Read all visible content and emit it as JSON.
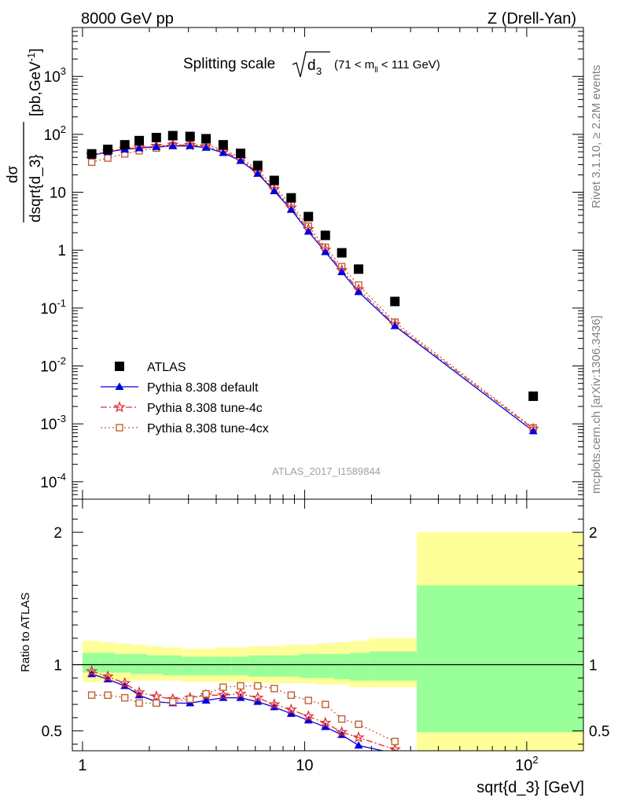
{
  "header": {
    "left": "8000 GeV pp",
    "right": "Z (Drell-Yan)"
  },
  "side_labels": {
    "rivet": "Rivet 3.1.10, ≥ 2.2M events",
    "mcplots": "mcplots.cern.ch [arXiv:1306.3436]"
  },
  "chart_data": [
    {
      "type": "scatter",
      "title": "Splitting scale √d₃ (71 < m_ll < 111 GeV)",
      "title_main": "Splitting scale",
      "title_sqrt": "d",
      "title_sqrt_sub": "3",
      "title_range_a": "(71 < m",
      "title_range_sub": "ll",
      "title_range_b": " < 111 GeV)",
      "ylabel": "dσ/dsqrt{d_3} [pb,GeV⁻¹]",
      "ylabel_num": "dσ",
      "ylabel_den": "dsqrt{d_3}",
      "ylabel_unit": "[pb,GeV",
      "ylabel_unit_sup": "-1",
      "ylabel_unit_end": "]",
      "yscale": "log",
      "xscale": "log",
      "xlim": [
        0.9,
        180
      ],
      "ylim": [
        5e-05,
        7000
      ],
      "ytick_labels": [
        "10⁻⁴",
        "10⁻³",
        "10⁻²",
        "10⁻¹",
        "1",
        "10",
        "10²",
        "10³"
      ],
      "ytick_values": [
        0.0001,
        0.001,
        0.01,
        0.1,
        1,
        10,
        100,
        1000
      ],
      "ytick_text": [
        [
          "10",
          "-4"
        ],
        [
          "10",
          "-3"
        ],
        [
          "10",
          "-2"
        ],
        [
          "10",
          "-1"
        ],
        [
          "1",
          ""
        ],
        [
          "10",
          ""
        ],
        [
          "10",
          "2"
        ],
        [
          "10",
          "3"
        ]
      ],
      "legend_position": "bottom-left",
      "watermark": "ATLAS_2017_I1589844",
      "series": [
        {
          "name": "ATLAS",
          "marker": "square",
          "color": "#000000",
          "x": [
            1.1,
            1.3,
            1.55,
            1.8,
            2.15,
            2.55,
            3.05,
            3.6,
            4.3,
            5.15,
            6.15,
            7.3,
            8.7,
            10.4,
            12.4,
            14.7,
            17.5,
            25.5,
            107
          ],
          "y": [
            46,
            55,
            66,
            78,
            88,
            95,
            92,
            84,
            66,
            47,
            29,
            16,
            8,
            3.8,
            1.8,
            0.9,
            0.47,
            0.13,
            0.003
          ]
        },
        {
          "name": "Pythia 8.308 default",
          "marker": "triangle",
          "color": "#0000e0",
          "line": "solid",
          "x": [
            1.1,
            1.3,
            1.55,
            1.8,
            2.15,
            2.55,
            3.05,
            3.6,
            4.3,
            5.15,
            6.15,
            7.3,
            8.7,
            10.4,
            12.4,
            14.7,
            17.5,
            25.5,
            107
          ],
          "y": [
            43,
            50,
            55,
            58,
            61,
            63,
            63,
            59,
            48,
            35,
            21,
            10.5,
            5,
            2.1,
            0.93,
            0.42,
            0.19,
            0.049,
            0.00075
          ]
        },
        {
          "name": "Pythia 8.308 tune-4c",
          "marker": "star",
          "color": "#e03030",
          "line": "dash-dot",
          "x": [
            1.1,
            1.3,
            1.55,
            1.8,
            2.15,
            2.55,
            3.05,
            3.6,
            4.3,
            5.15,
            6.15,
            7.3,
            8.7,
            10.4,
            12.4,
            14.7,
            17.5,
            25.5,
            107
          ],
          "y": [
            44,
            51,
            56,
            59,
            63,
            66,
            65,
            62,
            51,
            37,
            22,
            11.2,
            5.4,
            2.3,
            1.02,
            0.45,
            0.21,
            0.052,
            0.00082
          ]
        },
        {
          "name": "Pythia 8.308 tune-4cx",
          "marker": "open-square",
          "color": "#c06030",
          "line": "dotted",
          "x": [
            1.1,
            1.3,
            1.55,
            1.8,
            2.15,
            2.55,
            3.05,
            3.6,
            4.3,
            5.15,
            6.15,
            7.3,
            8.7,
            10.4,
            12.4,
            14.7,
            17.5,
            25.5,
            107
          ],
          "y": [
            33,
            39,
            46,
            52,
            58,
            64,
            66,
            65,
            55,
            40,
            24,
            12.6,
            6.1,
            2.6,
            1.12,
            0.52,
            0.25,
            0.057,
            0.00085
          ]
        }
      ]
    },
    {
      "type": "line",
      "ylabel": "Ratio to ATLAS",
      "xlabel": "sqrt{d_3} [GeV]",
      "xscale": "log",
      "xlim": [
        0.9,
        180
      ],
      "ylim": [
        0.35,
        2.25
      ],
      "ytick_labels": [
        "0.5",
        "1",
        "2"
      ],
      "ytick_values": [
        0.5,
        1,
        2
      ],
      "xtick_labels": [
        "1",
        "10",
        "10²"
      ],
      "xtick_text": [
        [
          "1",
          ""
        ],
        [
          "10",
          ""
        ],
        [
          "10",
          "2"
        ]
      ],
      "xtick_values": [
        1,
        10,
        100
      ],
      "bands": {
        "edges": [
          1.0,
          1.2,
          1.4,
          1.65,
          1.95,
          2.3,
          2.8,
          3.3,
          3.9,
          4.7,
          5.6,
          6.7,
          8.0,
          9.5,
          11.3,
          13.5,
          16.0,
          19.5,
          32,
          180
        ],
        "stat_low": [
          0.94,
          0.94,
          0.94,
          0.93,
          0.93,
          0.92,
          0.92,
          0.92,
          0.92,
          0.92,
          0.91,
          0.91,
          0.91,
          0.9,
          0.9,
          0.89,
          0.88,
          0.88,
          0.49
        ],
        "stat_high": [
          1.09,
          1.09,
          1.08,
          1.08,
          1.07,
          1.07,
          1.06,
          1.06,
          1.06,
          1.06,
          1.07,
          1.07,
          1.07,
          1.08,
          1.08,
          1.08,
          1.09,
          1.1,
          1.6
        ],
        "tot_low": [
          0.87,
          0.87,
          0.88,
          0.88,
          0.88,
          0.88,
          0.87,
          0.87,
          0.87,
          0.87,
          0.87,
          0.86,
          0.86,
          0.86,
          0.85,
          0.85,
          0.83,
          0.83,
          0.35
        ],
        "tot_high": [
          1.18,
          1.17,
          1.16,
          1.15,
          1.14,
          1.13,
          1.12,
          1.12,
          1.13,
          1.13,
          1.14,
          1.14,
          1.15,
          1.15,
          1.16,
          1.17,
          1.18,
          1.2,
          2.0
        ],
        "stat_color": "#99ff99",
        "tot_color": "#ffff99"
      },
      "series": [
        {
          "name": "Pythia 8.308 default",
          "marker": "triangle",
          "color": "#0000e0",
          "line": "solid",
          "x": [
            1.1,
            1.3,
            1.55,
            1.8,
            2.15,
            2.55,
            3.05,
            3.6,
            4.3,
            5.15,
            6.15,
            7.3,
            8.7,
            10.4,
            12.4,
            14.7,
            17.5,
            25.5
          ],
          "y": [
            0.93,
            0.89,
            0.84,
            0.77,
            0.72,
            0.71,
            0.71,
            0.73,
            0.75,
            0.75,
            0.72,
            0.68,
            0.63,
            0.58,
            0.53,
            0.47,
            0.39,
            0.33
          ]
        },
        {
          "name": "Pythia 8.308 tune-4c",
          "marker": "star",
          "color": "#e03030",
          "line": "dash-dot",
          "x": [
            1.1,
            1.3,
            1.55,
            1.8,
            2.15,
            2.55,
            3.05,
            3.6,
            4.3,
            5.15,
            6.15,
            7.3,
            8.7,
            10.4,
            12.4,
            14.7,
            17.5,
            25.5
          ],
          "y": [
            0.95,
            0.91,
            0.86,
            0.79,
            0.76,
            0.74,
            0.75,
            0.77,
            0.77,
            0.78,
            0.75,
            0.7,
            0.66,
            0.61,
            0.56,
            0.49,
            0.45,
            0.36
          ]
        },
        {
          "name": "Pythia 8.308 tune-4cx",
          "marker": "open-square",
          "color": "#c06030",
          "line": "dotted",
          "x": [
            1.1,
            1.3,
            1.55,
            1.8,
            2.15,
            2.55,
            3.05,
            3.6,
            4.3,
            5.15,
            6.15,
            7.3,
            8.7,
            10.4,
            12.4,
            14.7,
            17.5,
            25.5
          ],
          "y": [
            0.77,
            0.77,
            0.75,
            0.71,
            0.71,
            0.72,
            0.74,
            0.78,
            0.83,
            0.84,
            0.84,
            0.82,
            0.77,
            0.73,
            0.7,
            0.59,
            0.55,
            0.42
          ]
        }
      ]
    }
  ]
}
